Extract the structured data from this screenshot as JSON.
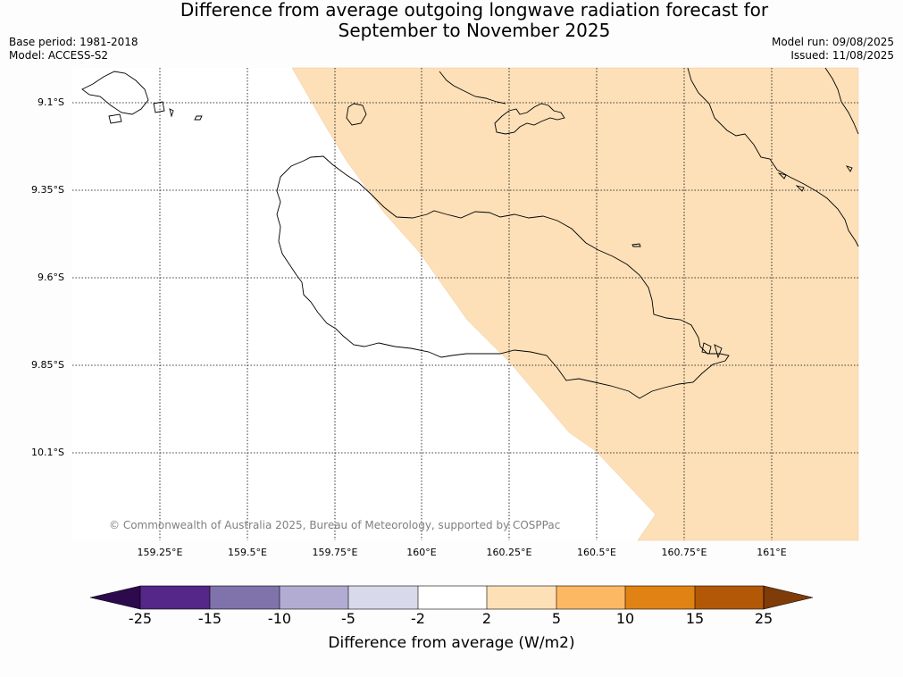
{
  "title_line1": "Difference from average outgoing longwave radiation forecast for",
  "title_line2": "September to November 2025",
  "meta": {
    "base_period": "Base period: 1981-2018",
    "model": "Model: ACCESS-S2",
    "model_run": "Model run: 09/08/2025",
    "issued": "Issued: 11/08/2025"
  },
  "map": {
    "latitude_labels": [
      "9.1°S",
      "9.35°S",
      "9.6°S",
      "9.85°S",
      "10.1°S"
    ],
    "longitude_labels": [
      "159.25°E",
      "159.5°E",
      "159.75°E",
      "160°E",
      "160.25°E",
      "160.5°E",
      "160.75°E",
      "161°E"
    ],
    "copyright": "© Commonwealth of Australia 2025, Bureau of Meteorology, supported by COSPPac",
    "filled_category": "2 to 5",
    "fill_color": "#fde0b8"
  },
  "colorbar": {
    "title": "Difference from average (W/m2)",
    "tick_labels": [
      "-25",
      "-15",
      "-10",
      "-5",
      "-2",
      "2",
      "5",
      "10",
      "15",
      "25"
    ],
    "under_color": "#2d0a4e",
    "over_color": "#7f3b08",
    "colors": [
      "#542788",
      "#8073ac",
      "#b2abd2",
      "#d8daeb",
      "#ffffff",
      "#fee0b6",
      "#fdb863",
      "#e08214",
      "#b35806"
    ]
  }
}
